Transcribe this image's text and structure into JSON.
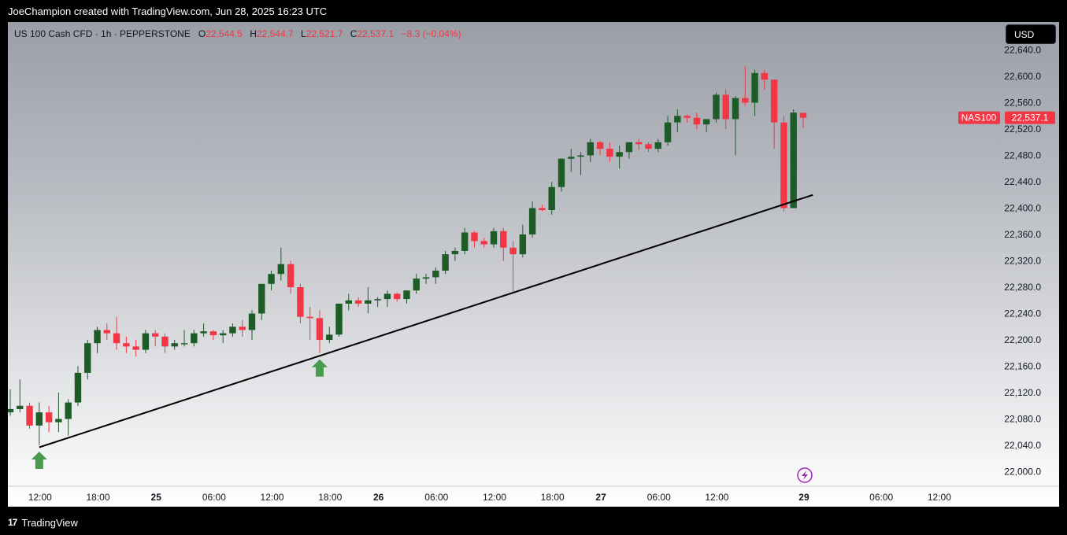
{
  "header": {
    "caption": "JoeChampion created with TradingView.com, Jun 28, 2025 16:23 UTC"
  },
  "footer": {
    "brand": "TradingView",
    "logo_glyph": "17"
  },
  "legend": {
    "symbol": "US 100 Cash CFD · 1h · PEPPERSTONE",
    "o_label": "O",
    "o_value": "22,544.5",
    "h_label": "H",
    "h_value": "22,544.7",
    "l_label": "L",
    "l_value": "22,521.7",
    "c_label": "C",
    "c_value": "22,537.1",
    "change": "−8.3 (−0.04%)"
  },
  "currency_button": "USD",
  "price_tag": {
    "name": "NAS100",
    "value": "22,537.1"
  },
  "colors": {
    "up": "#1e5c27",
    "down": "#f23645",
    "trendline": "#000000",
    "arrow": "#4a9a4e",
    "tag": "#f23645",
    "bolt": "#9c27b0"
  },
  "chart_data": {
    "type": "candlestick",
    "ylim": [
      21960,
      22655
    ],
    "y_ticks": [
      22000,
      22040,
      22080,
      22120,
      22160,
      22200,
      22240,
      22280,
      22320,
      22360,
      22400,
      22440,
      22480,
      22520,
      22560,
      22600,
      22640
    ],
    "y_tick_labels": [
      "22,000.0",
      "22,040.0",
      "22,080.0",
      "22,120.0",
      "22,160.0",
      "22,200.0",
      "22,240.0",
      "22,280.0",
      "22,320.0",
      "22,360.0",
      "22,400.0",
      "22,440.0",
      "22,480.0",
      "22,520.0",
      "22,560.0",
      "22,600.0",
      "22,640.0"
    ],
    "x_ticks": [
      {
        "label": "12:00",
        "bar": 3,
        "bold": false
      },
      {
        "label": "18:00",
        "bar": 9,
        "bold": false
      },
      {
        "label": "25",
        "bar": 15,
        "bold": true
      },
      {
        "label": "06:00",
        "bar": 21,
        "bold": false
      },
      {
        "label": "12:00",
        "bar": 27,
        "bold": false
      },
      {
        "label": "18:00",
        "bar": 33,
        "bold": false
      },
      {
        "label": "26",
        "bar": 38,
        "bold": true
      },
      {
        "label": "06:00",
        "bar": 44,
        "bold": false
      },
      {
        "label": "12:00",
        "bar": 50,
        "bold": false
      },
      {
        "label": "18:00",
        "bar": 56,
        "bold": false
      },
      {
        "label": "27",
        "bar": 61,
        "bold": true
      },
      {
        "label": "06:00",
        "bar": 67,
        "bold": false
      },
      {
        "label": "12:00",
        "bar": 73,
        "bold": false
      },
      {
        "label": "29",
        "bar": 82,
        "bold": true
      },
      {
        "label": "06:00",
        "bar": 90,
        "bold": false
      },
      {
        "label": "12:00",
        "bar": 96,
        "bold": false
      }
    ],
    "candles": [
      [
        22090,
        22125,
        22085,
        22095
      ],
      [
        22095,
        22140,
        22090,
        22100
      ],
      [
        22100,
        22105,
        22065,
        22070
      ],
      [
        22070,
        22105,
        22040,
        22090
      ],
      [
        22090,
        22100,
        22060,
        22075
      ],
      [
        22075,
        22120,
        22060,
        22080
      ],
      [
        22080,
        22110,
        22055,
        22105
      ],
      [
        22105,
        22160,
        22100,
        22150
      ],
      [
        22150,
        22200,
        22140,
        22195
      ],
      [
        22195,
        22220,
        22180,
        22215
      ],
      [
        22215,
        22225,
        22200,
        22210
      ],
      [
        22210,
        22235,
        22185,
        22195
      ],
      [
        22195,
        22205,
        22180,
        22190
      ],
      [
        22190,
        22200,
        22175,
        22185
      ],
      [
        22185,
        22215,
        22180,
        22210
      ],
      [
        22210,
        22215,
        22190,
        22205
      ],
      [
        22205,
        22210,
        22180,
        22190
      ],
      [
        22190,
        22200,
        22185,
        22195
      ],
      [
        22195,
        22215,
        22190,
        22195
      ],
      [
        22195,
        22215,
        22190,
        22210
      ],
      [
        22210,
        22225,
        22205,
        22213
      ],
      [
        22213,
        22215,
        22200,
        22207
      ],
      [
        22207,
        22215,
        22195,
        22210
      ],
      [
        22210,
        22225,
        22205,
        22220
      ],
      [
        22220,
        22230,
        22205,
        22215
      ],
      [
        22215,
        22245,
        22200,
        22240
      ],
      [
        22240,
        22285,
        22230,
        22285
      ],
      [
        22285,
        22305,
        22275,
        22300
      ],
      [
        22300,
        22340,
        22290,
        22315
      ],
      [
        22315,
        22320,
        22270,
        22280
      ],
      [
        22280,
        22285,
        22225,
        22235
      ],
      [
        22235,
        22250,
        22200,
        22233
      ],
      [
        22233,
        22245,
        22180,
        22200
      ],
      [
        22200,
        22220,
        22195,
        22208
      ],
      [
        22208,
        22255,
        22205,
        22255
      ],
      [
        22255,
        22270,
        22245,
        22260
      ],
      [
        22260,
        22265,
        22250,
        22255
      ],
      [
        22255,
        22280,
        22240,
        22260
      ],
      [
        22260,
        22265,
        22250,
        22262
      ],
      [
        22262,
        22275,
        22250,
        22270
      ],
      [
        22270,
        22272,
        22258,
        22262
      ],
      [
        22262,
        22275,
        22255,
        22275
      ],
      [
        22275,
        22300,
        22270,
        22293
      ],
      [
        22293,
        22300,
        22285,
        22295
      ],
      [
        22295,
        22310,
        22285,
        22305
      ],
      [
        22305,
        22335,
        22300,
        22330
      ],
      [
        22330,
        22340,
        22320,
        22335
      ],
      [
        22335,
        22370,
        22330,
        22363
      ],
      [
        22363,
        22365,
        22340,
        22350
      ],
      [
        22350,
        22355,
        22340,
        22345
      ],
      [
        22345,
        22370,
        22340,
        22365
      ],
      [
        22365,
        22370,
        22320,
        22340
      ],
      [
        22340,
        22350,
        22270,
        22330
      ],
      [
        22330,
        22375,
        22325,
        22360
      ],
      [
        22360,
        22410,
        22355,
        22400
      ],
      [
        22400,
        22405,
        22395,
        22397
      ],
      [
        22397,
        22440,
        22390,
        22432
      ],
      [
        22432,
        22475,
        22425,
        22475
      ],
      [
        22475,
        22490,
        22455,
        22478
      ],
      [
        22478,
        22485,
        22450,
        22480
      ],
      [
        22480,
        22505,
        22470,
        22500
      ],
      [
        22500,
        22502,
        22480,
        22490
      ],
      [
        22490,
        22500,
        22470,
        22478
      ],
      [
        22478,
        22495,
        22460,
        22485
      ],
      [
        22485,
        22500,
        22475,
        22500
      ],
      [
        22500,
        22505,
        22488,
        22497
      ],
      [
        22497,
        22500,
        22485,
        22490
      ],
      [
        22490,
        22505,
        22485,
        22500
      ],
      [
        22500,
        22540,
        22495,
        22530
      ],
      [
        22530,
        22550,
        22515,
        22540
      ],
      [
        22540,
        22542,
        22530,
        22537
      ],
      [
        22537,
        22545,
        22520,
        22527
      ],
      [
        22527,
        22535,
        22515,
        22535
      ],
      [
        22535,
        22575,
        22530,
        22572
      ],
      [
        22572,
        22580,
        22520,
        22535
      ],
      [
        22535,
        22570,
        22480,
        22567
      ],
      [
        22567,
        22615,
        22555,
        22560
      ],
      [
        22560,
        22610,
        22540,
        22605
      ],
      [
        22605,
        22610,
        22580,
        22595
      ],
      [
        22595,
        22595,
        22490,
        22530
      ],
      [
        22530,
        22540,
        22395,
        22400
      ],
      [
        22400,
        22550,
        22400,
        22545
      ],
      [
        22544.5,
        22544.7,
        22521.7,
        22537.1
      ]
    ],
    "trendline": {
      "from": {
        "bar": 3,
        "price": 22037
      },
      "to": {
        "bar": 83,
        "price": 22420
      }
    },
    "markers": [
      {
        "type": "up-arrow",
        "bar": 3
      },
      {
        "type": "up-arrow",
        "bar": 32
      }
    ]
  }
}
